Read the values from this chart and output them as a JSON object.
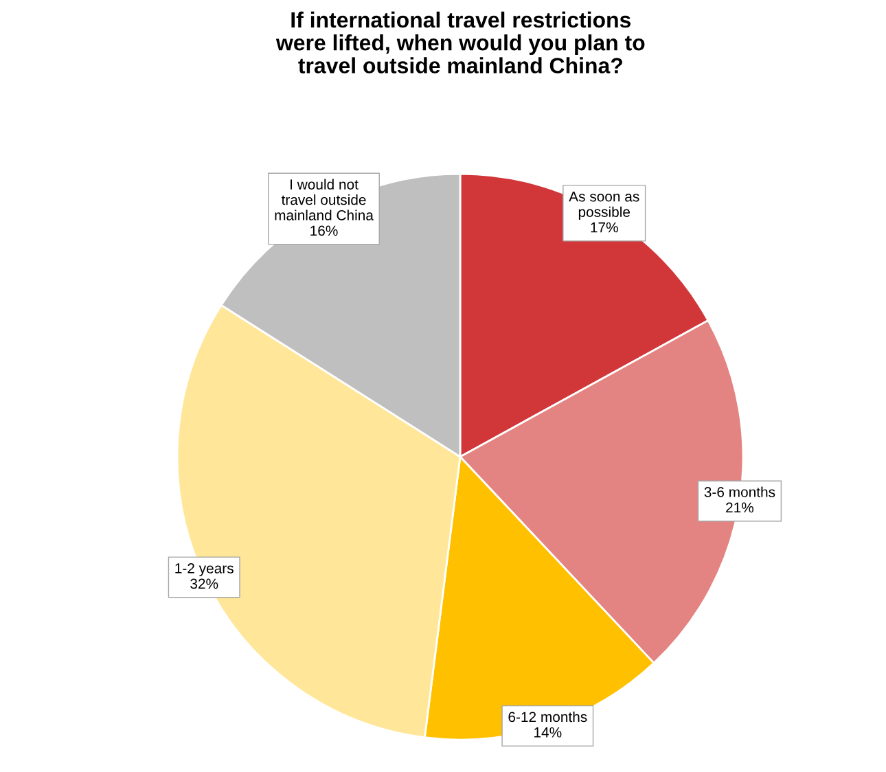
{
  "chart_data": {
    "type": "pie",
    "title": "If international travel restrictions were lifted, when would you plan to travel outside mainland China?",
    "categories": [
      "As soon as possible",
      "3-6 months",
      "6-12 months",
      "1-2 years",
      "I would not travel outside mainland China"
    ],
    "values": [
      17,
      21,
      14,
      32,
      16
    ],
    "colors": [
      "#d13639",
      "#e38482",
      "#ffc000",
      "#ffe699",
      "#bfbfbf"
    ],
    "value_labels": [
      "17%",
      "21%",
      "14%",
      "32%",
      "16%"
    ],
    "legend": false
  }
}
